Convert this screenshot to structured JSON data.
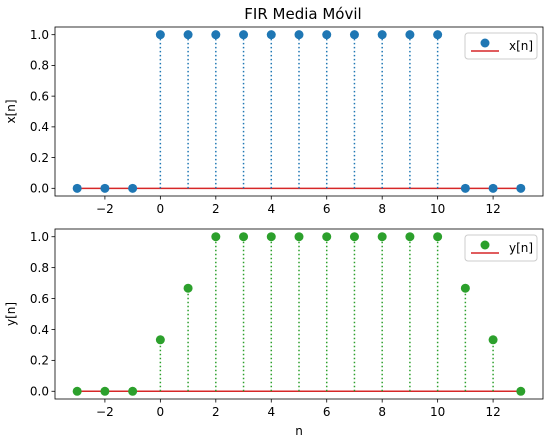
{
  "title": "FIR Media Móvil",
  "chart_data": [
    {
      "type": "stem",
      "name": "x-plot",
      "xlabel": "",
      "ylabel": "x[n]",
      "xlim": [
        -3.8,
        13.8
      ],
      "ylim": [
        -0.05,
        1.05
      ],
      "xticks": [
        -2,
        0,
        2,
        4,
        6,
        8,
        10,
        12
      ],
      "xtick_labels": [
        "−2",
        "0",
        "2",
        "4",
        "6",
        "8",
        "10",
        "12"
      ],
      "yticks": [
        0.0,
        0.2,
        0.4,
        0.6,
        0.8,
        1.0
      ],
      "ytick_labels": [
        "0.0",
        "0.2",
        "0.4",
        "0.6",
        "0.8",
        "1.0"
      ],
      "legend": {
        "label": "x[n]",
        "placement": "top-right"
      },
      "color": "#1f77b4",
      "baseline_color": "#d62728",
      "x": [
        -3,
        -2,
        -1,
        0,
        1,
        2,
        3,
        4,
        5,
        6,
        7,
        8,
        9,
        10,
        11,
        12,
        13
      ],
      "values": [
        0,
        0,
        0,
        1,
        1,
        1,
        1,
        1,
        1,
        1,
        1,
        1,
        1,
        1,
        0,
        0,
        0
      ]
    },
    {
      "type": "stem",
      "name": "y-plot",
      "xlabel": "n",
      "ylabel": "y[n]",
      "xlim": [
        -3.8,
        13.8
      ],
      "ylim": [
        -0.05,
        1.05
      ],
      "xticks": [
        -2,
        0,
        2,
        4,
        6,
        8,
        10,
        12
      ],
      "xtick_labels": [
        "−2",
        "0",
        "2",
        "4",
        "6",
        "8",
        "10",
        "12"
      ],
      "yticks": [
        0.0,
        0.2,
        0.4,
        0.6,
        0.8,
        1.0
      ],
      "ytick_labels": [
        "0.0",
        "0.2",
        "0.4",
        "0.6",
        "0.8",
        "1.0"
      ],
      "legend": {
        "label": "y[n]",
        "placement": "top-right"
      },
      "color": "#2ca02c",
      "baseline_color": "#d62728",
      "x": [
        -3,
        -2,
        -1,
        0,
        1,
        2,
        3,
        4,
        5,
        6,
        7,
        8,
        9,
        10,
        11,
        12,
        13
      ],
      "values": [
        0,
        0,
        0,
        0.333,
        0.667,
        1,
        1,
        1,
        1,
        1,
        1,
        1,
        1,
        1,
        0.667,
        0.333,
        0
      ]
    }
  ]
}
